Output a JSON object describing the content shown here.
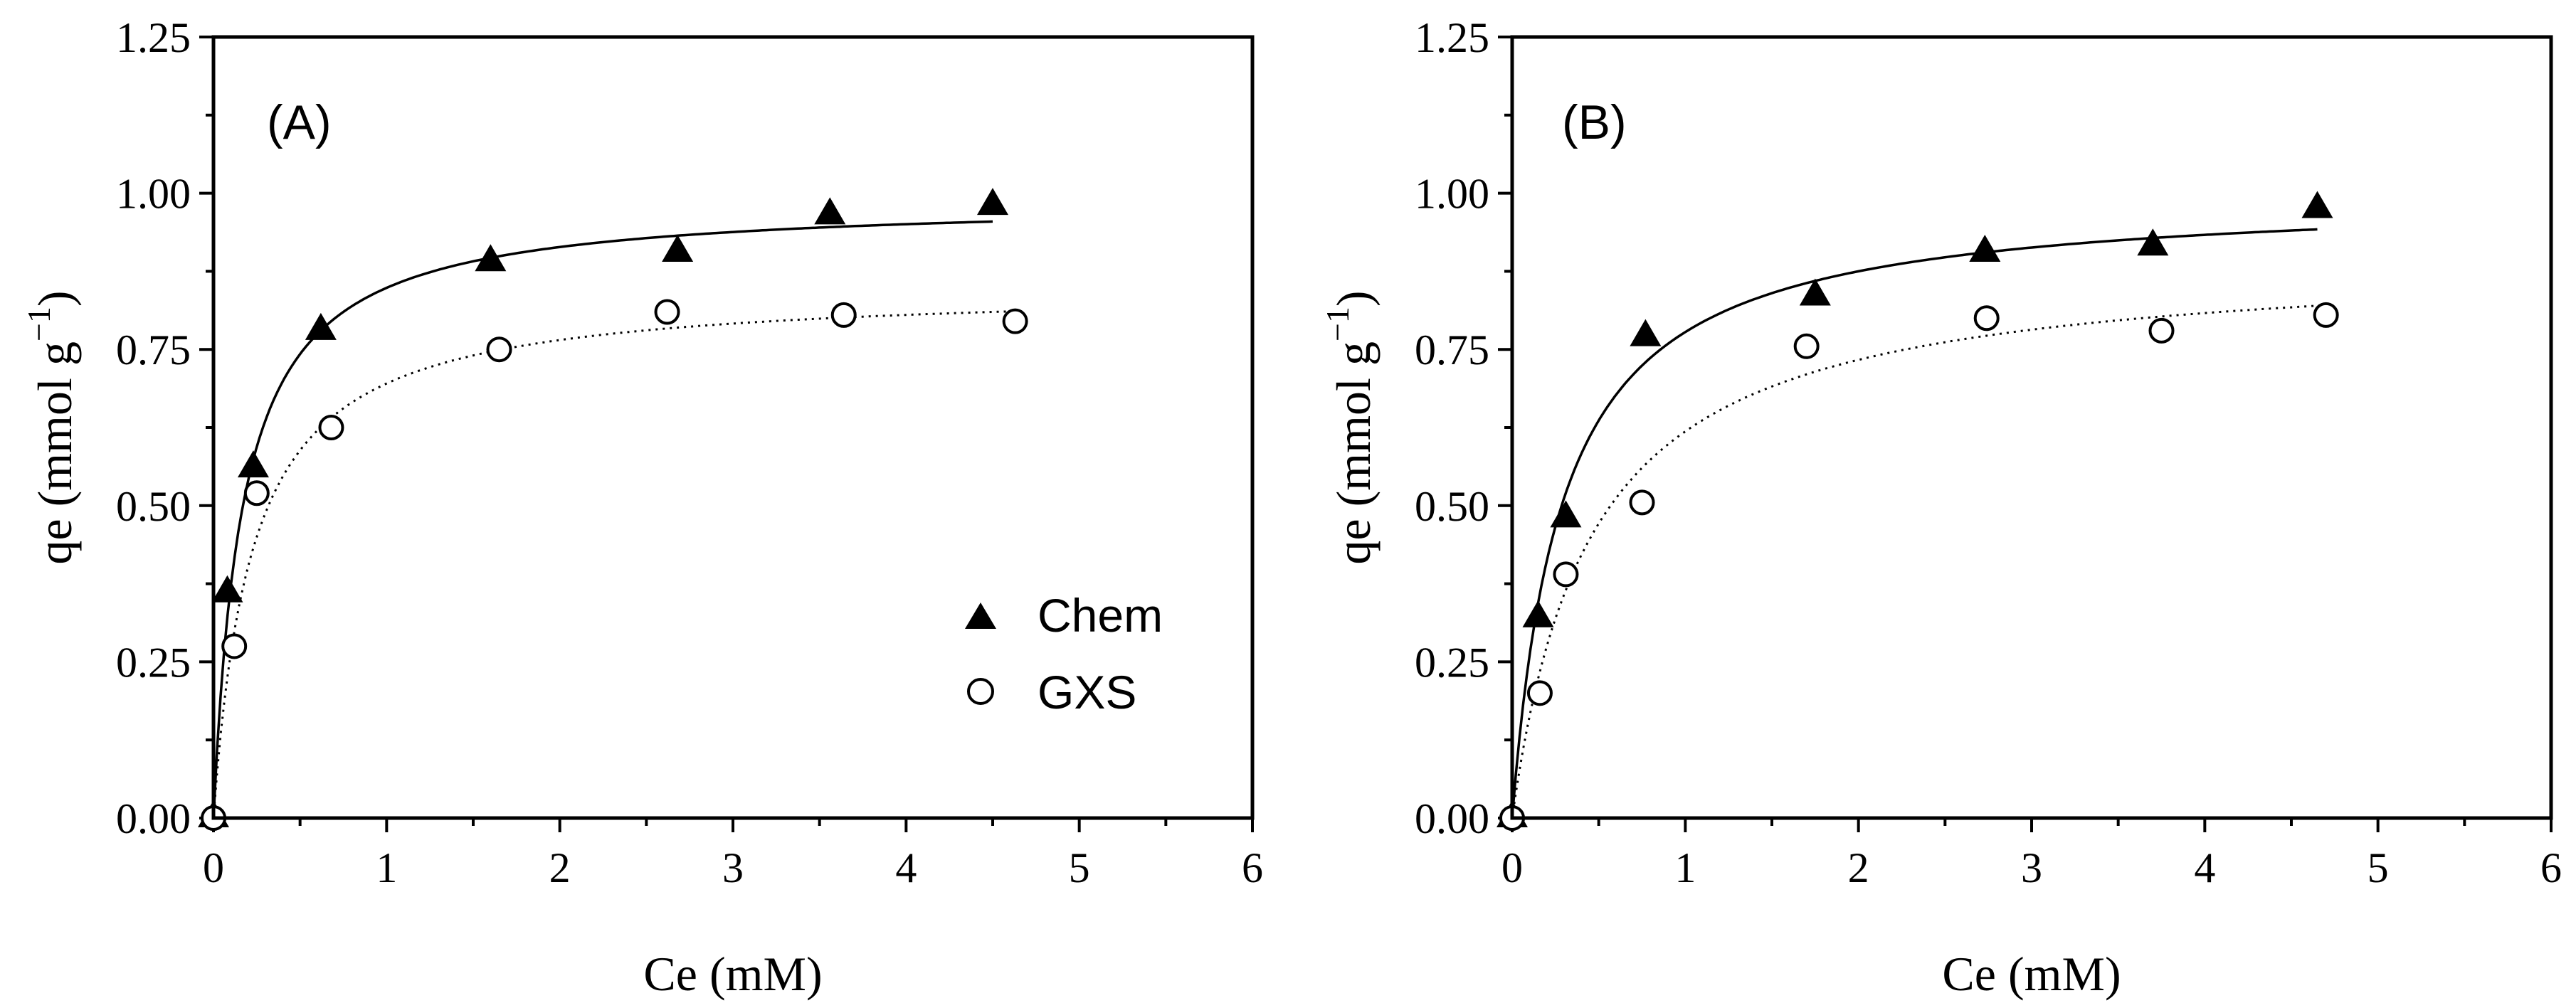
{
  "chart_data": [
    {
      "type": "scatter",
      "panel_label": "(A)",
      "xlabel": "Ce (mM)",
      "ylabel_main": "qe (mmol g",
      "ylabel_sup": "−1",
      "ylabel_close": ")",
      "xlim": [
        0,
        6
      ],
      "ylim": [
        0,
        1.25
      ],
      "x_ticks": [
        "0",
        "1",
        "2",
        "3",
        "4",
        "5",
        "6"
      ],
      "y_ticks": [
        "0.00",
        "0.25",
        "0.50",
        "0.75",
        "1.00",
        "1.25"
      ],
      "show_legend": true,
      "legend_position": "center-right",
      "series": [
        {
          "name": "Chem",
          "marker": "filled-triangle",
          "x": [
            0,
            0.08,
            0.23,
            0.62,
            1.6,
            2.68,
            3.56,
            4.5
          ],
          "y": [
            0,
            0.36,
            0.56,
            0.78,
            0.89,
            0.905,
            0.965,
            0.98
          ],
          "fit": {
            "model": "langmuir",
            "qmax": 0.99,
            "k": 6.0,
            "x_end": 4.5,
            "style": "solid"
          }
        },
        {
          "name": "GXS",
          "marker": "open-circle",
          "x": [
            0,
            0.12,
            0.25,
            0.68,
            1.65,
            2.62,
            3.64,
            4.63
          ],
          "y": [
            0,
            0.275,
            0.52,
            0.625,
            0.75,
            0.81,
            0.805,
            0.795
          ],
          "fit": {
            "model": "langmuir",
            "qmax": 0.85,
            "k": 4.5,
            "x_end": 4.63,
            "style": "dotted"
          }
        }
      ]
    },
    {
      "type": "scatter",
      "panel_label": "(B)",
      "xlabel": "Ce (mM)",
      "ylabel_main": "qe (mmol g",
      "ylabel_sup": "−1",
      "ylabel_close": ")",
      "xlim": [
        0,
        6
      ],
      "ylim": [
        0,
        1.25
      ],
      "x_ticks": [
        "0",
        "1",
        "2",
        "3",
        "4",
        "5",
        "6"
      ],
      "y_ticks": [
        "0.00",
        "0.25",
        "0.50",
        "0.75",
        "1.00",
        "1.25"
      ],
      "show_legend": false,
      "series": [
        {
          "name": "Chem",
          "marker": "filled-triangle",
          "x": [
            0,
            0.15,
            0.31,
            0.77,
            1.75,
            2.73,
            3.7,
            4.65
          ],
          "y": [
            0,
            0.32,
            0.48,
            0.77,
            0.835,
            0.905,
            0.915,
            0.975
          ],
          "fit": {
            "model": "langmuir",
            "qmax": 1.0,
            "k": 3.5,
            "x_end": 4.65,
            "style": "solid"
          }
        },
        {
          "name": "GXS",
          "marker": "open-circle",
          "x": [
            0,
            0.16,
            0.31,
            0.75,
            1.7,
            2.74,
            3.75,
            4.7
          ],
          "y": [
            0,
            0.2,
            0.39,
            0.505,
            0.755,
            0.8,
            0.78,
            0.805
          ],
          "fit": {
            "model": "langmuir",
            "qmax": 0.9,
            "k": 2.2,
            "x_end": 4.7,
            "style": "dotted"
          }
        }
      ]
    }
  ]
}
